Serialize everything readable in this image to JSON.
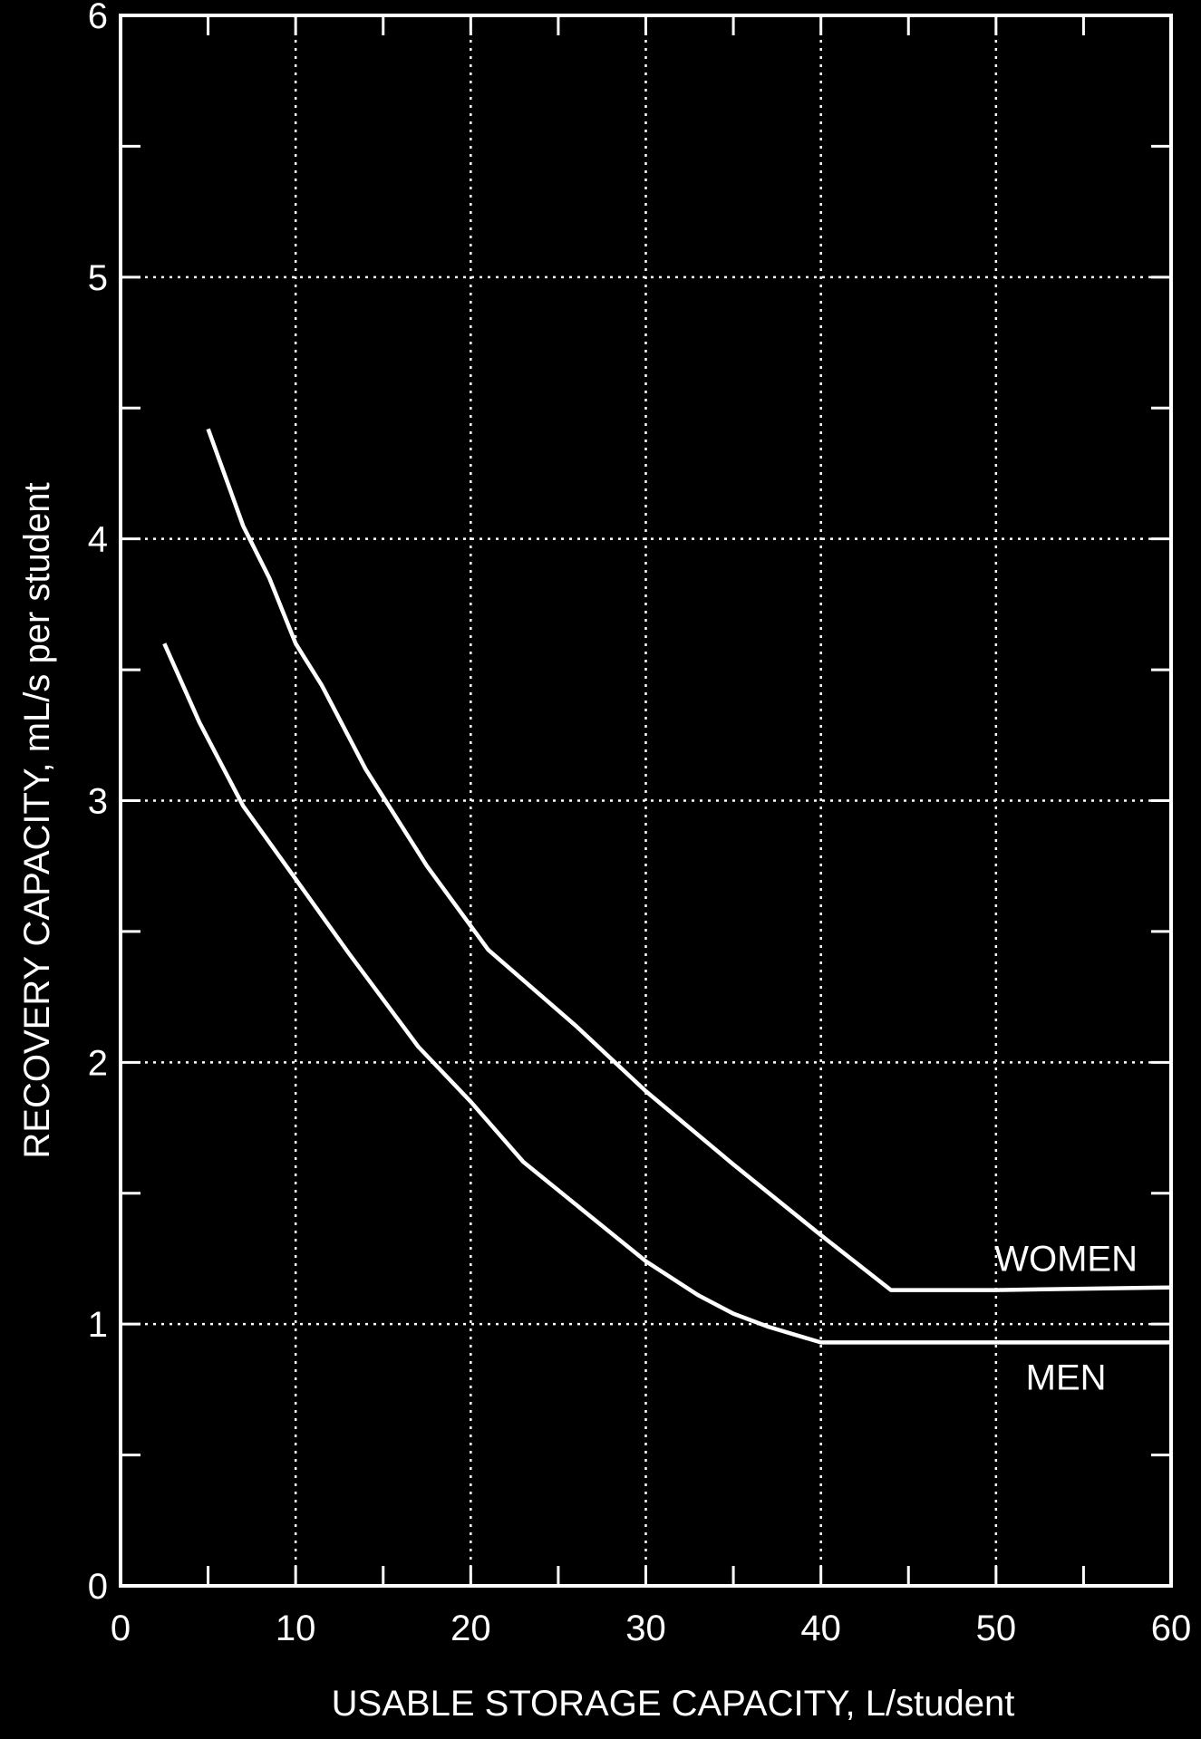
{
  "chart_data": {
    "type": "line",
    "title": "",
    "xlabel": "USABLE STORAGE CAPACITY, L/student",
    "ylabel": "RECOVERY CAPACITY, mL/s per student",
    "xlim": [
      0,
      60
    ],
    "ylim": [
      0,
      6
    ],
    "x_ticks": [
      "0",
      "10",
      "20",
      "30",
      "40",
      "50",
      "60"
    ],
    "y_ticks": [
      "0",
      "1",
      "2",
      "3",
      "4",
      "5",
      "6"
    ],
    "grid": true,
    "grid_style": "dotted",
    "background_color": "#000000",
    "foreground_color": "#ffffff",
    "series": [
      {
        "name": "WOMEN",
        "x": [
          5,
          7,
          8.5,
          10,
          11.5,
          14,
          17.5,
          21,
          26,
          30,
          35,
          40,
          44,
          50,
          60
        ],
        "y": [
          4.42,
          4.05,
          3.85,
          3.6,
          3.44,
          3.12,
          2.75,
          2.43,
          2.14,
          1.89,
          1.61,
          1.34,
          1.13,
          1.13,
          1.14
        ]
      },
      {
        "name": "MEN",
        "x": [
          2.5,
          4.5,
          7,
          10,
          13,
          17,
          20,
          23,
          26.5,
          30,
          33,
          35,
          37,
          40,
          50,
          60
        ],
        "y": [
          3.6,
          3.3,
          2.98,
          2.7,
          2.42,
          2.06,
          1.85,
          1.62,
          1.43,
          1.24,
          1.11,
          1.04,
          0.99,
          0.93,
          0.93,
          0.93
        ]
      }
    ]
  }
}
